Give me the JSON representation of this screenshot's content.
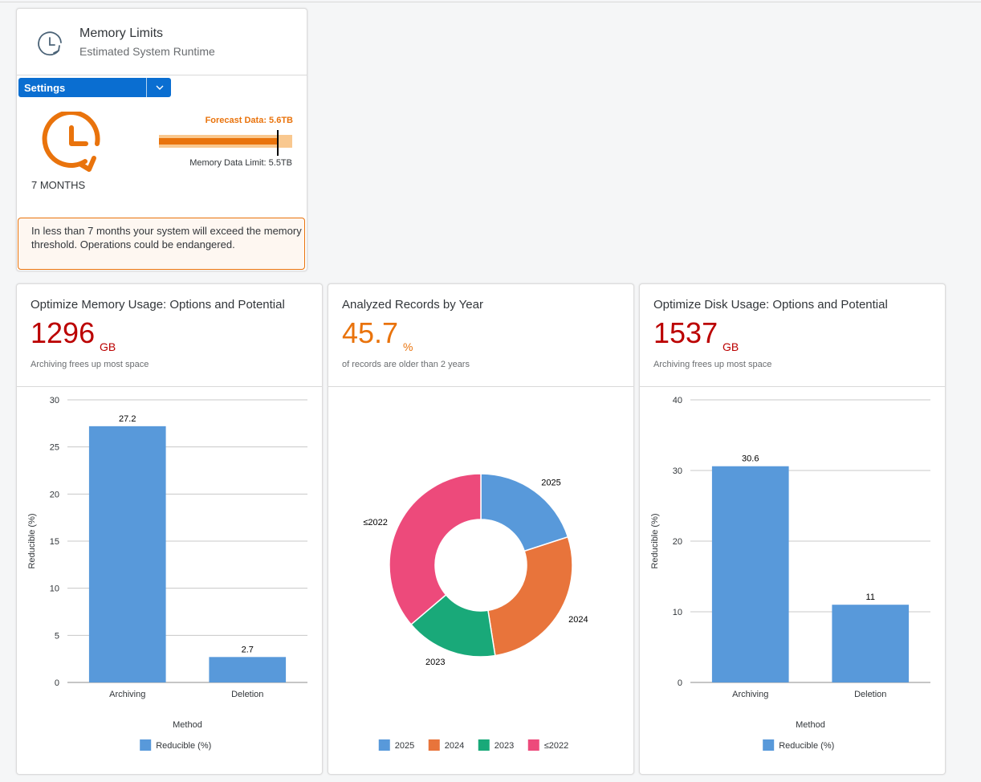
{
  "memory_card": {
    "title": "Memory Limits",
    "subtitle": "Estimated System Runtime",
    "settings_label": "Settings",
    "runtime_label": "7 MONTHS",
    "forecast_label": "Forecast Data: 5.6TB",
    "limit_label": "Memory Data Limit: 5.5TB",
    "forecast_fraction": 0.9,
    "limit_fraction": 0.89,
    "warning": "In less than 7 months your system will exceed the memory threshold. Operations could be endangered."
  },
  "colors": {
    "blue": "#5899da",
    "orange": "#e8743b",
    "green": "#19a979",
    "pink": "#ed4a7b",
    "red": "#bb0000",
    "accent_orange": "#e9730c"
  },
  "cards": [
    {
      "title": "Optimize Memory Usage: Options and Potential",
      "value": "1296",
      "unit": "GB",
      "subtitle": "Archiving frees up most space"
    },
    {
      "title": "Analyzed Records by Year",
      "value": "45.7",
      "unit": "%",
      "subtitle": "of records are older than 2 years"
    },
    {
      "title": "Optimize Disk Usage: Options and Potential",
      "value": "1537",
      "unit": "GB",
      "subtitle": "Archiving frees up most space"
    }
  ],
  "chart_data": [
    {
      "type": "bar",
      "categories": [
        "Archiving",
        "Deletion"
      ],
      "series": [
        {
          "name": "Reducible (%)",
          "values": [
            27.2,
            2.7
          ]
        }
      ],
      "data_labels": [
        "27.2",
        "2.7"
      ],
      "xlabel": "Method",
      "ylabel": "Reducible (%)",
      "ylim": [
        0,
        30
      ],
      "yticks": [
        0,
        5,
        10,
        15,
        20,
        25,
        30
      ],
      "grid": true,
      "legend": "bottom"
    },
    {
      "type": "pie",
      "donut": true,
      "categories": [
        "2025",
        "2024",
        "2023",
        "≤2022"
      ],
      "values": [
        20.0,
        27.5,
        16.3,
        36.2
      ],
      "legend": "bottom"
    },
    {
      "type": "bar",
      "categories": [
        "Archiving",
        "Deletion"
      ],
      "series": [
        {
          "name": "Reducible (%)",
          "values": [
            30.6,
            11
          ]
        }
      ],
      "data_labels": [
        "30.6",
        "11"
      ],
      "xlabel": "Method",
      "ylabel": "Reducible (%)",
      "ylim": [
        0,
        40
      ],
      "yticks": [
        0,
        10,
        20,
        30,
        40
      ],
      "grid": true,
      "legend": "bottom"
    }
  ]
}
